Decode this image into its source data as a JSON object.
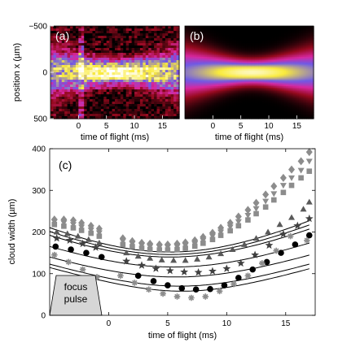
{
  "chart_data": [
    {
      "panel": "(a)",
      "type": "heatmap",
      "ylabel": "position x (µm)",
      "xlabel": "time of flight (ms)",
      "xticks": [
        "0",
        "5",
        "10",
        "15"
      ],
      "yticks": [
        "−500",
        "0",
        "500"
      ],
      "xlim": [
        -5,
        18
      ],
      "ylim": [
        -500,
        500
      ],
      "colormap": "black-red-magenta-blue-yellow-white",
      "center_x": 0
    },
    {
      "panel": "(b)",
      "type": "heatmap",
      "xlabel": "time of flight (ms)",
      "xticks": [
        "0",
        "5",
        "10",
        "15"
      ],
      "xlim": [
        -5,
        18
      ],
      "ylim": [
        -500,
        500
      ],
      "colormap": "black-red-magenta-blue-yellow-white",
      "center_x": 0
    },
    {
      "panel": "(c)",
      "type": "scatter",
      "xlabel": "time of flight (ms)",
      "ylabel": "cloud width (µm)",
      "xlim": [
        -5,
        17.5
      ],
      "ylim": [
        0,
        400
      ],
      "xticks": [
        "0",
        "5",
        "10",
        "15"
      ],
      "yticks": [
        "0",
        "100",
        "200",
        "300",
        "400"
      ],
      "annotation": "focus pulse",
      "annotation_lines": [
        "focus",
        "pulse"
      ],
      "series": [
        {
          "marker": "diamond",
          "color": "#8c8c8c",
          "x": [
            -4.6,
            -3.8,
            -3,
            -2.3,
            -1.5,
            -0.8,
            1.2,
            2,
            2.8,
            3.5,
            4.3,
            5,
            5.8,
            6.5,
            7.3,
            8,
            8.8,
            9.5,
            10.3,
            11,
            11.8,
            12.5,
            13.3,
            14,
            14.8,
            15.5,
            16.3,
            17
          ],
          "y": [
            230,
            230,
            228,
            222,
            215,
            208,
            185,
            178,
            174,
            172,
            170,
            170,
            172,
            175,
            180,
            188,
            198,
            210,
            222,
            237,
            253,
            270,
            290,
            310,
            330,
            350,
            370,
            392
          ]
        },
        {
          "marker": "triangle-down",
          "color": "#8c8c8c",
          "x": [
            -4.6,
            -3.8,
            -3,
            -2.3,
            -1.5,
            -0.8,
            1.2,
            2,
            2.8,
            3.5,
            4.3,
            5,
            5.8,
            6.5,
            7.3,
            8,
            8.8,
            9.5,
            10.3,
            11,
            11.8,
            12.5,
            13.3,
            14,
            14.8,
            15.5,
            16.3,
            17
          ],
          "y": [
            225,
            222,
            218,
            212,
            205,
            198,
            178,
            172,
            168,
            165,
            164,
            164,
            165,
            168,
            172,
            180,
            190,
            200,
            212,
            225,
            240,
            256,
            274,
            292,
            312,
            330,
            348,
            370
          ]
        },
        {
          "marker": "square",
          "color": "#8c8c8c",
          "x": [
            -4.6,
            -3.8,
            -3,
            -2.3,
            -1.5,
            -0.8,
            1.2,
            2,
            2.8,
            3.5,
            4.3,
            5,
            5.8,
            6.5,
            7.3,
            8,
            8.8,
            9.5,
            10.3,
            11,
            11.8,
            12.5,
            13.3,
            14,
            14.8,
            15.5,
            16.3,
            17
          ],
          "y": [
            218,
            214,
            210,
            204,
            197,
            190,
            170,
            165,
            161,
            158,
            157,
            157,
            158,
            161,
            166,
            173,
            182,
            192,
            203,
            215,
            229,
            244,
            260,
            277,
            295,
            312,
            330,
            346
          ]
        },
        {
          "marker": "triangle-up",
          "color": "#595959",
          "x": [
            -4.4,
            -3.5,
            -2.6,
            -1.7,
            -0.8,
            1.5,
            2.5,
            3.5,
            4.5,
            5.5,
            6.5,
            7.5,
            8.5,
            9.5,
            10.5,
            11.5,
            12.5,
            13.5,
            14.5,
            15.5,
            16.5,
            17
          ],
          "y": [
            200,
            196,
            190,
            182,
            174,
            150,
            142,
            137,
            133,
            132,
            132,
            135,
            140,
            148,
            158,
            170,
            185,
            200,
            218,
            235,
            255,
            272
          ]
        },
        {
          "marker": "star",
          "color": "#404040",
          "x": [
            -4.4,
            -3.3,
            -2.2,
            -1.1,
            1.5,
            2.8,
            4,
            5.2,
            6.4,
            7.6,
            8.8,
            10,
            11.2,
            12.4,
            13.6,
            14.8,
            16,
            17
          ],
          "y": [
            185,
            180,
            172,
            163,
            130,
            120,
            112,
            107,
            104,
            103,
            106,
            112,
            125,
            145,
            168,
            195,
            215,
            232
          ]
        },
        {
          "marker": "circle",
          "color": "#000000",
          "x": [
            -4.5,
            -3.2,
            -1.9,
            -0.6,
            2.5,
            3.8,
            5,
            6.2,
            7.4,
            8.6,
            9.8,
            11,
            12.2,
            13.4,
            14.6,
            15.8,
            17
          ],
          "y": [
            165,
            158,
            150,
            140,
            95,
            82,
            72,
            65,
            62,
            63,
            72,
            90,
            110,
            128,
            150,
            170,
            192
          ]
        },
        {
          "marker": "asterisk",
          "color": "#8c8c8c",
          "x": [
            -4.6,
            -3.4,
            -2.2,
            -1,
            1,
            2.2,
            3.4,
            4.6,
            5.8,
            7,
            8.2,
            9.4,
            10.6,
            11.8,
            13,
            14.2,
            15.4,
            16.8
          ],
          "y": [
            145,
            128,
            110,
            92,
            95,
            78,
            62,
            52,
            45,
            42,
            45,
            58,
            75,
            95,
            125,
            155,
            190,
            180
          ]
        }
      ],
      "fits": [
        {
          "a": 0.84,
          "b": 152,
          "t0": 5.2
        },
        {
          "a": 0.8,
          "b": 146,
          "t0": 5.2
        },
        {
          "a": 0.76,
          "b": 140,
          "t0": 5.2
        },
        {
          "a": 0.66,
          "b": 116,
          "t0": 5.5
        },
        {
          "a": 0.58,
          "b": 92,
          "t0": 5.7
        },
        {
          "a": 0.54,
          "b": 70,
          "t0": 6.0
        },
        {
          "a": 0.52,
          "b": 58,
          "t0": 6.2
        }
      ]
    }
  ]
}
